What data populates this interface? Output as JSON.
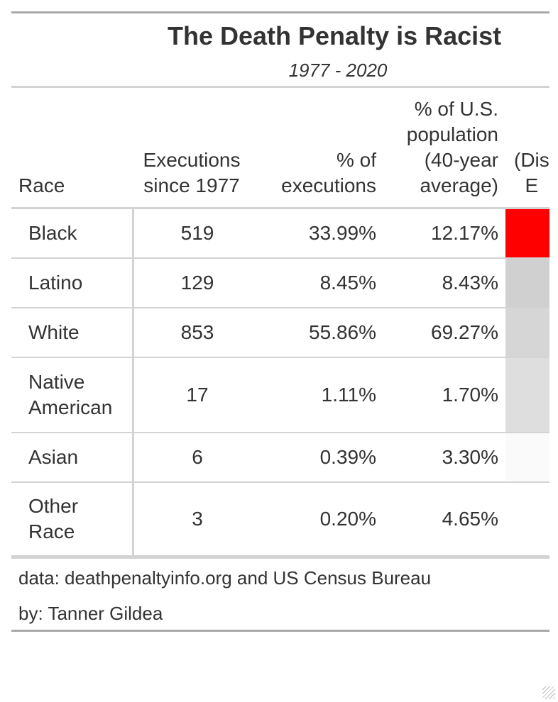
{
  "title": "The Death Penalty is Racist",
  "subtitle": "1977 - 2020",
  "columns": {
    "race": "Race",
    "executions": "Executions\nsince 1977",
    "pct_executions": "% of\nexecutions",
    "pct_population": "% of U.S.\npopulation\n(40-year\naverage)",
    "disparity": "(Dis\n  E"
  },
  "source": {
    "data": "data: deathpenaltyinfo.org and US Census Bureau",
    "by": "by: Tanner Gildea"
  },
  "chart_data": {
    "type": "table",
    "rows": [
      {
        "race": "Black",
        "executions": "519",
        "pct_executions": "33.99%",
        "pct_population": "12.17%",
        "disparity_color": "#ff0000"
      },
      {
        "race": "Latino",
        "executions": "129",
        "pct_executions": "8.45%",
        "pct_population": "8.43%",
        "disparity_color": "#d0d0d0"
      },
      {
        "race": "White",
        "executions": "853",
        "pct_executions": "55.86%",
        "pct_population": "69.27%",
        "disparity_color": "#d6d6d6"
      },
      {
        "race": "Native\nAmerican",
        "executions": "17",
        "pct_executions": "1.11%",
        "pct_population": "1.70%",
        "disparity_color": "#dedede"
      },
      {
        "race": "Asian",
        "executions": "6",
        "pct_executions": "0.39%",
        "pct_population": "3.30%",
        "disparity_color": "#fafafa"
      },
      {
        "race": "Other\nRace",
        "executions": "3",
        "pct_executions": "0.20%",
        "pct_population": "4.65%",
        "disparity_color": "#ffffff"
      }
    ]
  }
}
